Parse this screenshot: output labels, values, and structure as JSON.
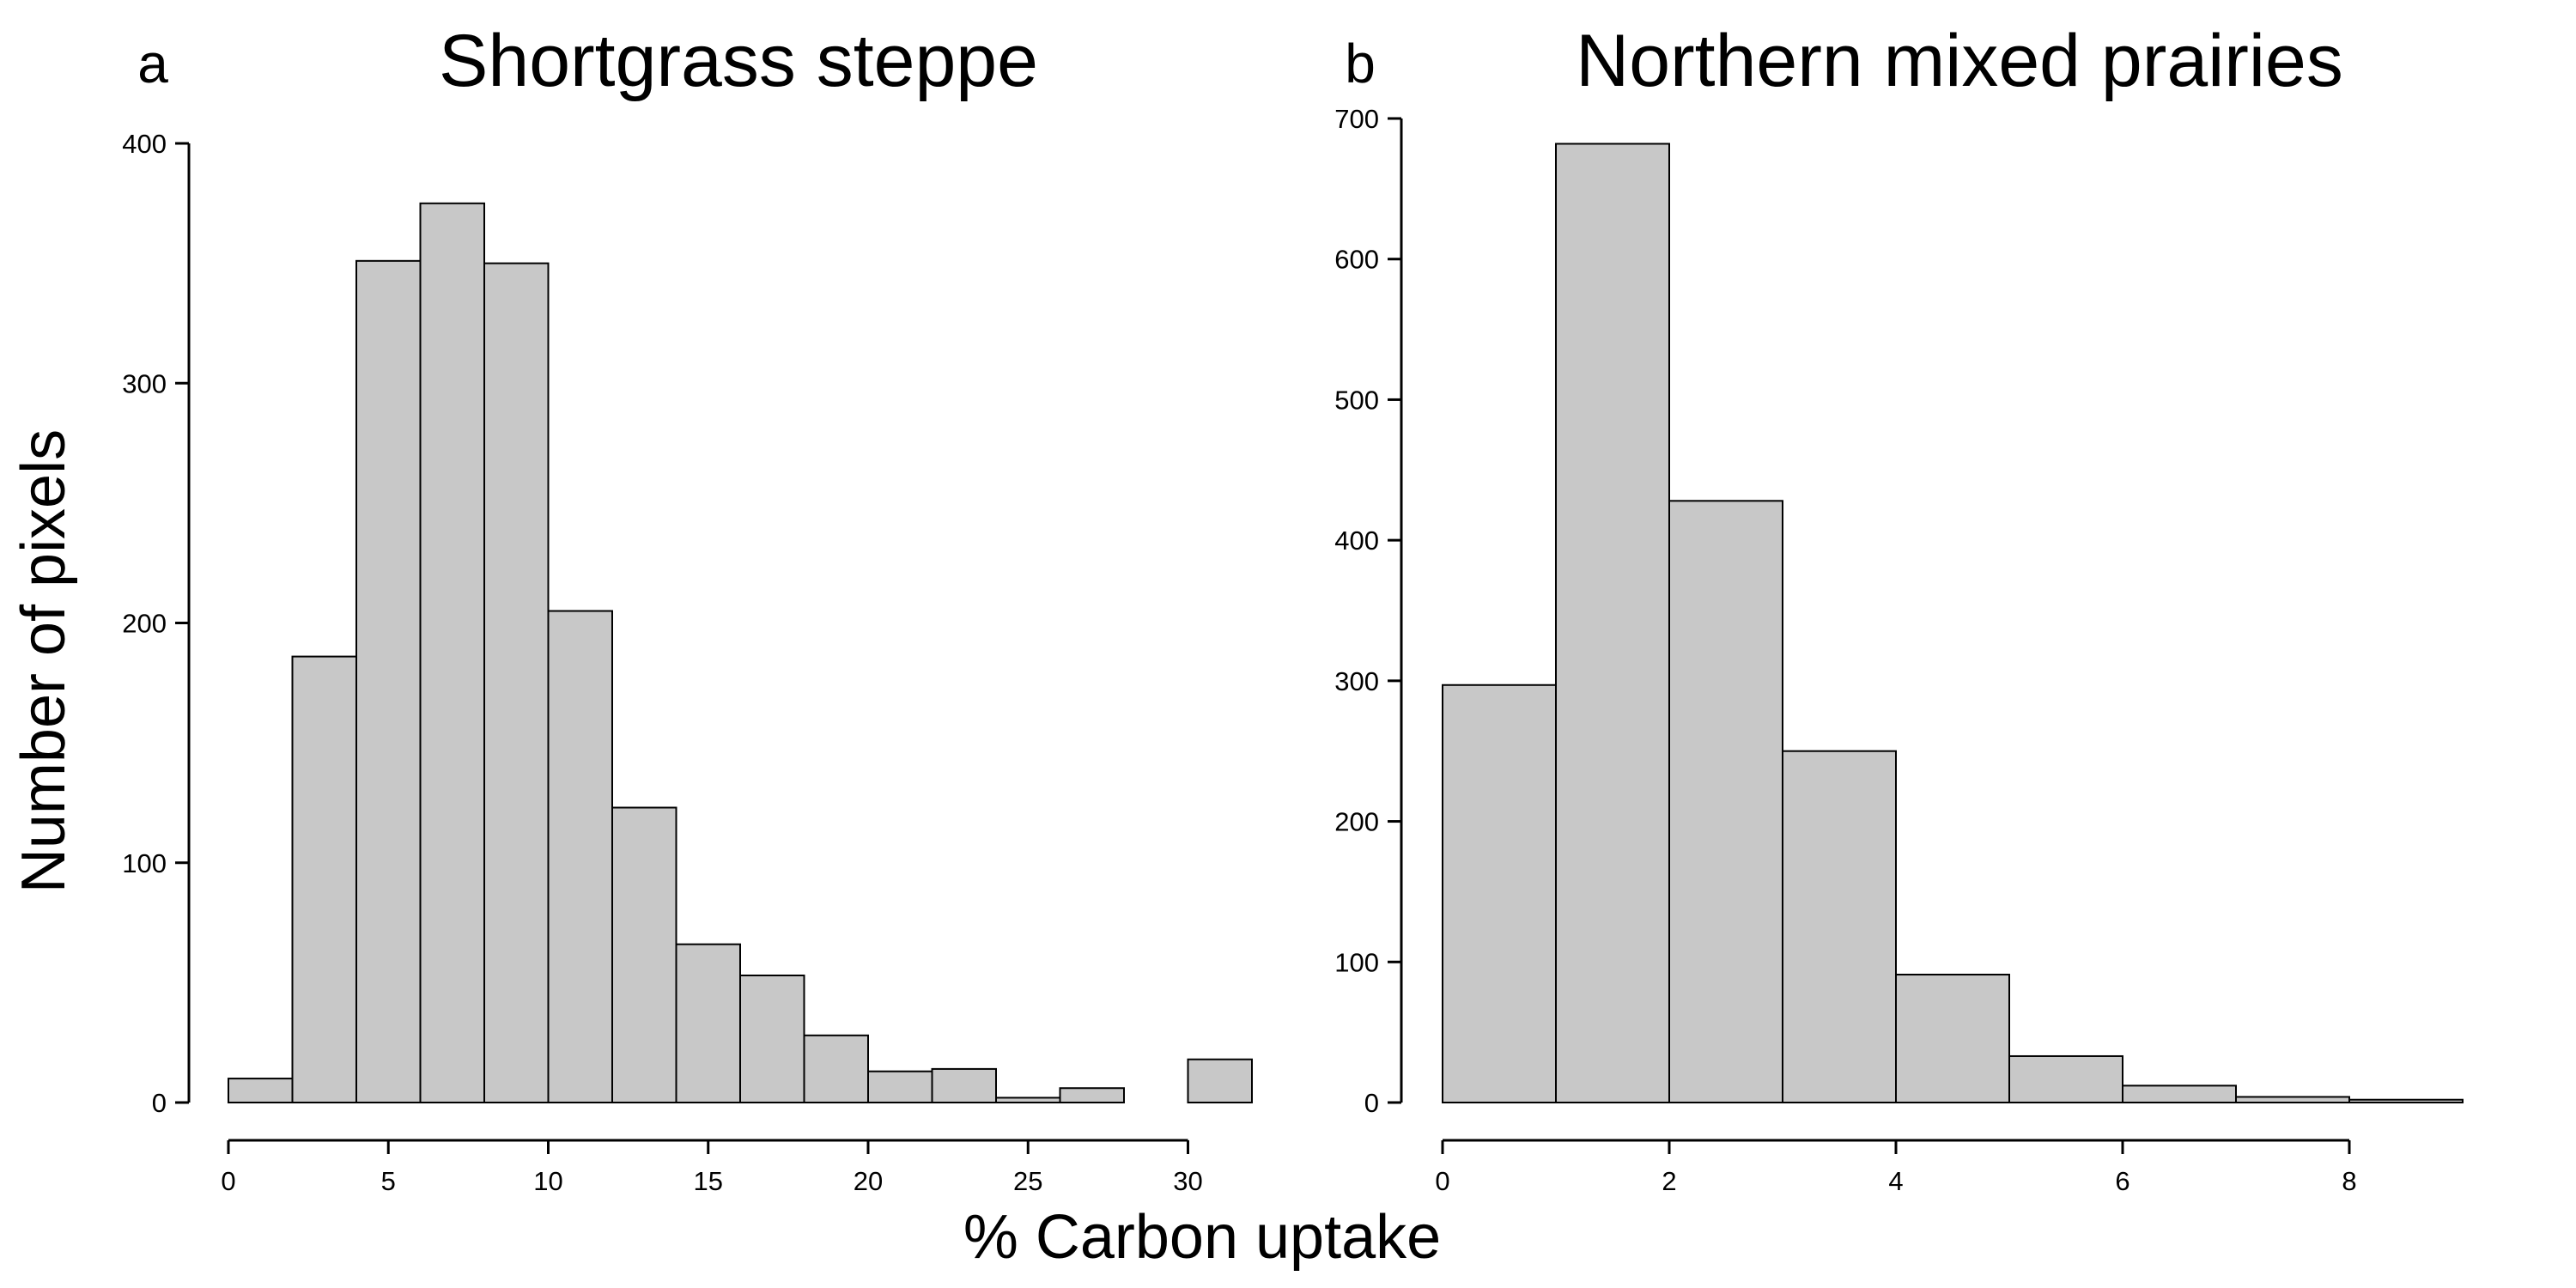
{
  "figure": {
    "ylabel": "Number of pixels",
    "xlabel": "% Carbon uptake"
  },
  "colors": {
    "bar_fill": "#c8c8c8",
    "bar_stroke": "#000000"
  },
  "chart_data": [
    {
      "type": "bar",
      "panel_label": "a",
      "title": "Shortgrass steppe",
      "xlabel": "% Carbon uptake",
      "ylabel": "Number of pixels",
      "bin_edges": [
        0,
        2,
        4,
        6,
        8,
        10,
        12,
        14,
        16,
        18,
        20,
        22,
        24,
        26,
        28,
        30,
        32
      ],
      "values": [
        10,
        186,
        351,
        375,
        350,
        205,
        123,
        66,
        53,
        28,
        13,
        14,
        2,
        6,
        0,
        18
      ],
      "xlim": [
        0,
        32
      ],
      "ylim": [
        0,
        400
      ],
      "xticks": [
        0,
        5,
        10,
        15,
        20,
        25,
        30
      ],
      "yticks": [
        0,
        100,
        200,
        300,
        400
      ],
      "grid": false,
      "legend": false
    },
    {
      "type": "bar",
      "panel_label": "b",
      "title": "Northern mixed prairies",
      "xlabel": "% Carbon uptake",
      "ylabel": "Number of pixels",
      "bin_edges": [
        0,
        1,
        2,
        3,
        4,
        5,
        6,
        7,
        8,
        9
      ],
      "values": [
        297,
        682,
        428,
        250,
        91,
        33,
        12,
        4,
        2
      ],
      "xlim": [
        0,
        9
      ],
      "ylim": [
        0,
        700
      ],
      "xticks": [
        0,
        2,
        4,
        6,
        8
      ],
      "yticks": [
        0,
        100,
        200,
        300,
        400,
        500,
        600,
        700
      ],
      "grid": false,
      "legend": false
    }
  ]
}
